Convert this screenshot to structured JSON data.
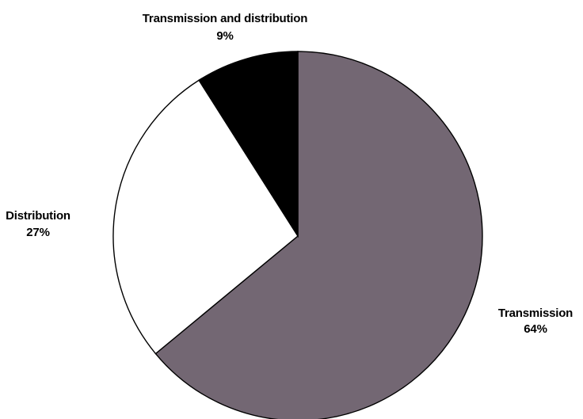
{
  "chart_data": {
    "type": "pie",
    "title": "",
    "start_angle_deg": 0,
    "direction": "clockwise",
    "slices": [
      {
        "label": "Transmission",
        "percent_label": "64%",
        "value": 64,
        "color": "#736773"
      },
      {
        "label": "Distribution",
        "percent_label": "27%",
        "value": 27,
        "color": "#ffffff"
      },
      {
        "label": "Transmission and distribution",
        "percent_label": "9%",
        "value": 9,
        "color": "#000000"
      }
    ],
    "legend": "none"
  }
}
